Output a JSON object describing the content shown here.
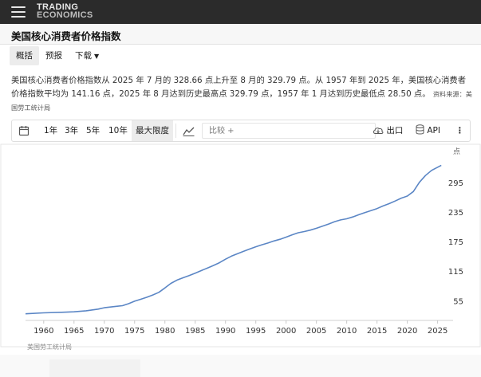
{
  "brand": {
    "line1": "TRADING",
    "line2": "ECONOMICS"
  },
  "page_title": "美国核心消费者价格指数",
  "tabs": [
    {
      "label": "概括"
    },
    {
      "label": "预报"
    },
    {
      "label": "下载"
    }
  ],
  "summary": {
    "text": "美国核心消费者价格指数从 2025 年 7 月的 328.66 点上升至 8 月的 329.79 点。从 1957 年到 2025 年，美国核心消费者价格指数平均为 141.16 点，2025 年 8 月达到历史最高点 329.79 点，1957 年 1 月达到历史最低点 28.50 点。",
    "source": "资料来源：美国劳工统计局"
  },
  "toolbar": {
    "ranges": [
      "1年",
      "3年",
      "5年",
      "10年",
      "最大限度"
    ],
    "selected_range": "最大限度",
    "compare_placeholder": "比较 +",
    "export_label": "出口",
    "api_label": "API"
  },
  "footer_source": "美国劳工统计局",
  "colors": {
    "line": "#5b86c5",
    "topbar": "#2b2b2b"
  },
  "chart_data": {
    "type": "line",
    "title": "",
    "xlabel": "",
    "ylabel": "点",
    "x_ticks": [
      1960,
      1965,
      1970,
      1975,
      1980,
      1985,
      1990,
      1995,
      2000,
      2005,
      2010,
      2015,
      2020,
      2025
    ],
    "y_ticks": [
      55,
      115,
      175,
      235,
      295
    ],
    "xlim": [
      1957,
      2026.5
    ],
    "ylim": [
      15,
      345
    ],
    "grid": false,
    "series": [
      {
        "x": [
          1957,
          1960,
          1963,
          1965,
          1967,
          1969,
          1970,
          1972,
          1973,
          1974,
          1975,
          1976,
          1977,
          1978,
          1979,
          1980,
          1981,
          1982,
          1983,
          1984,
          1985,
          1986,
          1987,
          1988,
          1989,
          1990,
          1991,
          1992,
          1993,
          1994,
          1995,
          1996,
          1997,
          1998,
          1999,
          2000,
          2001,
          2002,
          2003,
          2004,
          2005,
          2006,
          2007,
          2008,
          2009,
          2010,
          2011,
          2012,
          2013,
          2014,
          2015,
          2016,
          2017,
          2018,
          2019,
          2020,
          2021,
          2022,
          2023,
          2024,
          2025.6
        ],
        "y": [
          28.5,
          30.3,
          31.5,
          32.5,
          34.5,
          38.0,
          40.8,
          43.6,
          44.9,
          49.0,
          54.0,
          57.9,
          61.9,
          66.6,
          72.0,
          80.8,
          90.3,
          96.9,
          101.5,
          105.9,
          111.0,
          116.1,
          121.1,
          126.5,
          132.1,
          139.3,
          145.6,
          150.5,
          155.3,
          160.0,
          164.5,
          168.5,
          172.1,
          176.2,
          179.7,
          184.0,
          188.7,
          193.0,
          195.4,
          198.3,
          202.0,
          206.2,
          210.5,
          215.5,
          219.0,
          221.3,
          225.0,
          229.5,
          233.8,
          237.9,
          242.0,
          247.3,
          252.0,
          257.4,
          263.2,
          267.3,
          276.6,
          295.3,
          309.1,
          319.5,
          329.79
        ]
      }
    ]
  }
}
